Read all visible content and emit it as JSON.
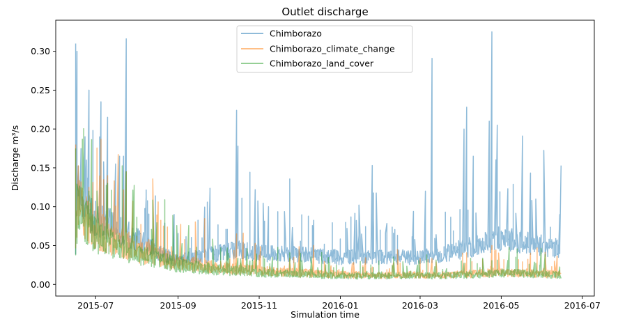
{
  "chart_data": {
    "type": "line",
    "title": "Outlet discharge",
    "xlabel": "Simulation time",
    "ylabel": "Discharge m³/s",
    "xlim": [
      "2015-06-01",
      "2016-07-10"
    ],
    "ylim": [
      -0.015,
      0.34
    ],
    "x_ticks": [
      "2015-07-01",
      "2015-09-01",
      "2015-11-01",
      "2016-01-01",
      "2016-03-01",
      "2016-05-01",
      "2016-07-01"
    ],
    "x_tick_labels": [
      "2015-07",
      "2015-09",
      "2015-11",
      "2016-01",
      "2016-03",
      "2016-05",
      "2016-07"
    ],
    "y_ticks": [
      0.0,
      0.05,
      0.1,
      0.15,
      0.2,
      0.25,
      0.3
    ],
    "y_tick_labels": [
      "0.00",
      "0.05",
      "0.10",
      "0.15",
      "0.20",
      "0.25",
      "0.30"
    ],
    "grid": false,
    "legend_position": "top-center",
    "series": [
      {
        "name": "Chimborazo",
        "color": "#1f77b4",
        "opacity": 0.5,
        "x": [
          "2015-06-16",
          "2015-06-18",
          "2015-06-22",
          "2015-07-01",
          "2015-07-15",
          "2015-08-01",
          "2015-08-15",
          "2015-09-01",
          "2015-09-15",
          "2015-10-01",
          "2015-10-15",
          "2015-11-01",
          "2015-11-15",
          "2015-12-01",
          "2015-12-15",
          "2016-01-01",
          "2016-01-15",
          "2016-02-01",
          "2016-02-15",
          "2016-03-01",
          "2016-03-15",
          "2016-04-01",
          "2016-04-15",
          "2016-05-01",
          "2016-05-15",
          "2016-06-01",
          "2016-06-15"
        ],
        "y": [
          0.04,
          0.13,
          0.1,
          0.085,
          0.075,
          0.058,
          0.045,
          0.03,
          0.035,
          0.04,
          0.045,
          0.04,
          0.04,
          0.038,
          0.037,
          0.035,
          0.036,
          0.035,
          0.035,
          0.035,
          0.038,
          0.045,
          0.05,
          0.06,
          0.055,
          0.05,
          0.045
        ],
        "peaks": [
          {
            "x": "2015-06-16",
            "y": 0.31
          },
          {
            "x": "2015-06-17",
            "y": 0.3
          },
          {
            "x": "2015-06-24",
            "y": 0.16
          },
          {
            "x": "2015-06-26",
            "y": 0.25
          },
          {
            "x": "2015-07-05",
            "y": 0.235
          },
          {
            "x": "2015-07-10",
            "y": 0.215
          },
          {
            "x": "2015-07-16",
            "y": 0.155
          },
          {
            "x": "2015-07-19",
            "y": 0.165
          },
          {
            "x": "2015-07-22",
            "y": 0.165
          },
          {
            "x": "2015-07-24",
            "y": 0.316
          },
          {
            "x": "2015-08-29",
            "y": 0.09
          },
          {
            "x": "2015-09-25",
            "y": 0.12
          },
          {
            "x": "2015-10-15",
            "y": 0.224
          },
          {
            "x": "2015-10-16",
            "y": 0.178
          },
          {
            "x": "2015-11-08",
            "y": 0.1
          },
          {
            "x": "2016-01-25",
            "y": 0.153
          },
          {
            "x": "2016-03-05",
            "y": 0.12
          },
          {
            "x": "2016-03-10",
            "y": 0.291
          },
          {
            "x": "2016-04-03",
            "y": 0.2
          },
          {
            "x": "2016-04-05",
            "y": 0.228
          },
          {
            "x": "2016-04-10",
            "y": 0.165
          },
          {
            "x": "2016-04-22",
            "y": 0.21
          },
          {
            "x": "2016-04-24",
            "y": 0.325
          },
          {
            "x": "2016-04-28",
            "y": 0.205
          },
          {
            "x": "2016-06-15",
            "y": 0.153
          },
          {
            "x": "2016-06-16",
            "y": 0.15
          }
        ]
      },
      {
        "name": "Chimborazo_climate_change",
        "color": "#ff7f0e",
        "opacity": 0.5,
        "x": [
          "2015-06-16",
          "2015-06-18",
          "2015-06-22",
          "2015-07-01",
          "2015-07-15",
          "2015-08-01",
          "2015-08-15",
          "2015-09-01",
          "2015-09-15",
          "2015-10-01",
          "2015-10-15",
          "2015-11-01",
          "2015-11-15",
          "2015-12-01",
          "2015-12-15",
          "2016-01-01",
          "2016-01-15",
          "2016-02-01",
          "2016-02-15",
          "2016-03-01",
          "2016-03-15",
          "2016-04-01",
          "2016-04-15",
          "2016-05-01",
          "2016-05-15",
          "2016-06-01",
          "2016-06-15"
        ],
        "y": [
          0.04,
          0.12,
          0.09,
          0.07,
          0.058,
          0.045,
          0.037,
          0.028,
          0.025,
          0.022,
          0.02,
          0.018,
          0.016,
          0.015,
          0.014,
          0.013,
          0.012,
          0.012,
          0.012,
          0.012,
          0.012,
          0.013,
          0.014,
          0.016,
          0.015,
          0.014,
          0.013
        ],
        "peaks": [
          {
            "x": "2015-06-16",
            "y": 0.18
          },
          {
            "x": "2015-06-26",
            "y": 0.125
          },
          {
            "x": "2015-07-10",
            "y": 0.14
          },
          {
            "x": "2015-07-24",
            "y": 0.145
          },
          {
            "x": "2015-10-15",
            "y": 0.065
          },
          {
            "x": "2016-04-24",
            "y": 0.05
          }
        ]
      },
      {
        "name": "Chimborazo_land_cover",
        "color": "#2ca02c",
        "opacity": 0.5,
        "x": [
          "2015-06-16",
          "2015-06-18",
          "2015-06-22",
          "2015-07-01",
          "2015-07-15",
          "2015-08-01",
          "2015-08-15",
          "2015-09-01",
          "2015-09-15",
          "2015-10-01",
          "2015-10-15",
          "2015-11-01",
          "2015-11-15",
          "2015-12-01",
          "2015-12-15",
          "2016-01-01",
          "2016-01-15",
          "2016-02-01",
          "2016-02-15",
          "2016-03-01",
          "2016-03-15",
          "2016-04-01",
          "2016-04-15",
          "2016-05-01",
          "2016-05-15",
          "2016-06-01",
          "2016-06-15"
        ],
        "y": [
          0.04,
          0.11,
          0.085,
          0.065,
          0.052,
          0.04,
          0.033,
          0.025,
          0.022,
          0.019,
          0.017,
          0.015,
          0.014,
          0.013,
          0.012,
          0.011,
          0.011,
          0.011,
          0.011,
          0.011,
          0.011,
          0.012,
          0.013,
          0.015,
          0.014,
          0.013,
          0.012
        ],
        "peaks": [
          {
            "x": "2015-06-16",
            "y": 0.175
          },
          {
            "x": "2015-06-26",
            "y": 0.12
          },
          {
            "x": "2015-07-10",
            "y": 0.13
          },
          {
            "x": "2015-07-24",
            "y": 0.145
          }
        ]
      }
    ]
  }
}
